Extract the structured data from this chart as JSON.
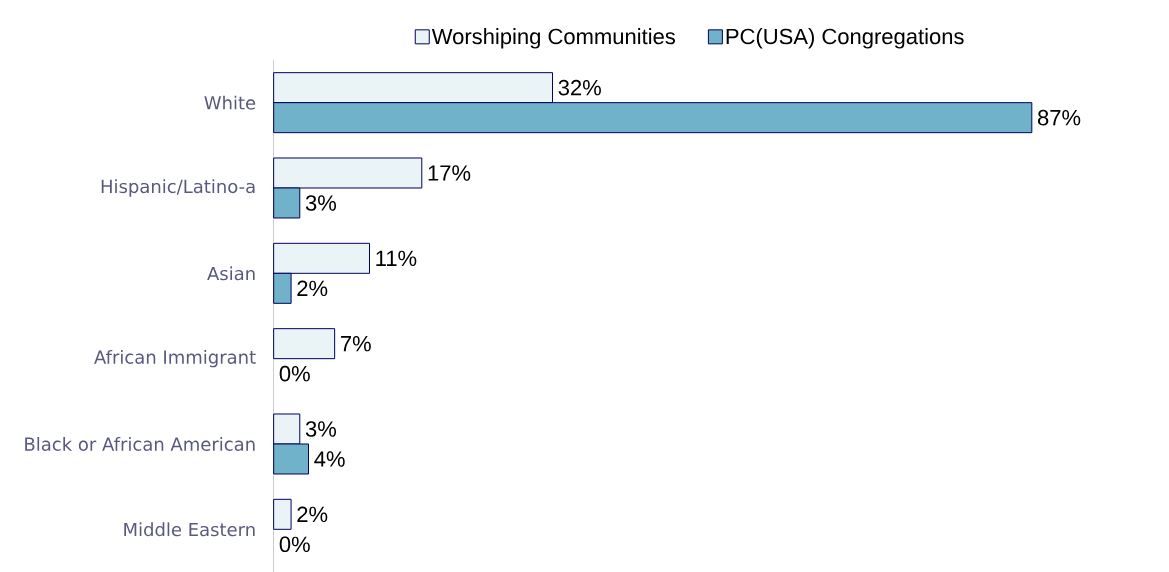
{
  "chart_data": {
    "type": "bar",
    "orientation": "horizontal",
    "categories": [
      "White",
      "Hispanic/Latino-a",
      "Asian",
      "African Immigrant",
      "Black or African American",
      "Middle Eastern"
    ],
    "series": [
      {
        "name": "Worshiping Communities",
        "color": "#eaf3f5",
        "values": [
          32,
          17,
          11,
          7,
          3,
          2
        ],
        "value_labels": [
          "32%",
          "17%",
          "11%",
          "7%",
          "3%",
          "2%"
        ]
      },
      {
        "name": "PC(USA) Congregations",
        "color": "#70b2c9",
        "values": [
          87,
          3,
          2,
          0,
          4,
          0
        ],
        "value_labels": [
          "87%",
          "3%",
          "2%",
          "0%",
          "4%",
          "0%"
        ]
      }
    ],
    "legend": "top"
  }
}
